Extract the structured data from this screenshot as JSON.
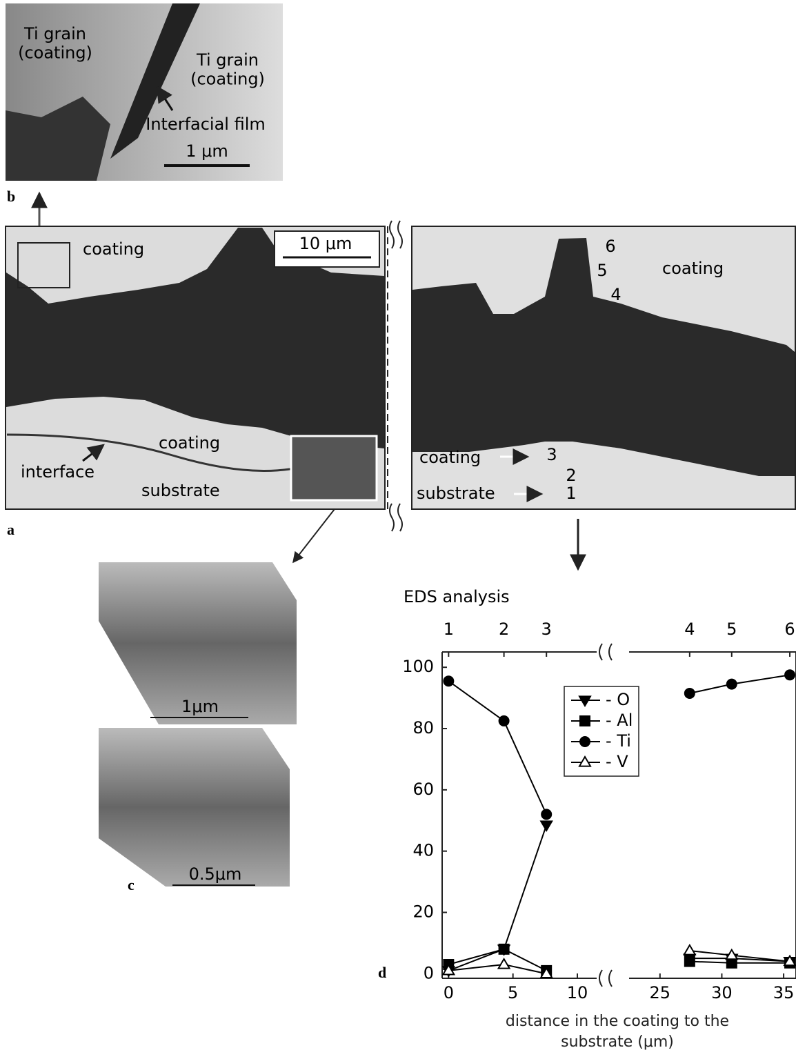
{
  "panels": {
    "b": {
      "letter": "b",
      "grain_left": "Ti grain\n(coating)",
      "grain_right": "Ti grain\n(coating)",
      "film": "Interfacial film",
      "scale": "1 μm"
    },
    "a": {
      "letter": "a",
      "scale": "10 μm",
      "coating_top": "coating",
      "coating_mid": "coating",
      "interface": "interface",
      "substrate": "substrate",
      "coating_right": "coating",
      "coating_arrow": "coating",
      "substrate_arrow": "substrate",
      "points": [
        "1",
        "2",
        "3",
        "4",
        "5",
        "6"
      ]
    },
    "c": {
      "letter": "c",
      "scale_top": "1μm",
      "scale_bottom": "0.5μm"
    },
    "d": {
      "letter": "d"
    }
  },
  "chart_data": {
    "type": "line",
    "title": "EDS analysis",
    "x_label": "distance in the coating to the substrate (μm)",
    "x": [
      0,
      4.3,
      7.6,
      27.4,
      30.8,
      35.5
    ],
    "series": [
      {
        "name": "- O",
        "color": "#000",
        "marker": "triangle-down",
        "values": [
          1,
          8,
          48.5,
          5,
          5,
          4
        ]
      },
      {
        "name": "- Al",
        "color": "#000",
        "marker": "square",
        "values": [
          3,
          8,
          1,
          4,
          3.5,
          3.5
        ]
      },
      {
        "name": "- Ti",
        "color": "#000",
        "marker": "circle",
        "values": [
          95.5,
          82.5,
          52,
          91.5,
          94.5,
          97.5
        ]
      },
      {
        "name": "- V",
        "color": "#000",
        "marker": "triangle-up-open",
        "values": [
          1,
          3,
          0,
          7.5,
          6,
          4
        ]
      }
    ],
    "xlim": [
      -0.5,
      36
    ],
    "x_break": [
      11.5,
      22.5
    ],
    "xticks": [
      0,
      5,
      10,
      25,
      30,
      35
    ],
    "top_ticks": [
      {
        "value": 0,
        "label": "1"
      },
      {
        "value": 4.3,
        "label": "2"
      },
      {
        "value": 7.6,
        "label": "3"
      },
      {
        "value": 27.4,
        "label": "4"
      },
      {
        "value": 30.8,
        "label": "5"
      },
      {
        "value": 35.5,
        "label": "6"
      }
    ],
    "ylim": [
      -1.5,
      105
    ],
    "yticks": [
      0,
      20,
      40,
      60,
      80,
      100
    ]
  }
}
